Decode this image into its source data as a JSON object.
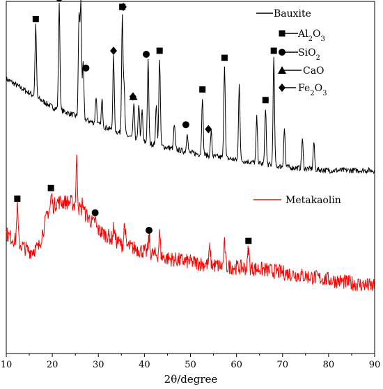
{
  "chart_data": {
    "type": "line",
    "xlabel": "2θ/degree",
    "ylabel": "",
    "xlim": [
      10,
      90
    ],
    "x_ticks": [
      "10",
      "20",
      "30",
      "40",
      "50",
      "60",
      "70",
      "80",
      "90"
    ],
    "grid": false,
    "legend_placement": "top-right",
    "series": [
      {
        "name": "Bauxite",
        "color": "#000000",
        "baseline": [
          [
            10,
            0.78
          ],
          [
            20,
            0.7
          ],
          [
            30,
            0.65
          ],
          [
            40,
            0.6
          ],
          [
            50,
            0.57
          ],
          [
            60,
            0.55
          ],
          [
            70,
            0.53
          ],
          [
            80,
            0.52
          ],
          [
            90,
            0.52
          ]
        ],
        "peaks": [
          [
            16.4,
            0.93
          ],
          [
            21.5,
            0.99
          ],
          [
            25.8,
            0.96
          ],
          [
            26.2,
            0.99
          ],
          [
            26.7,
            0.82
          ],
          [
            29.5,
            0.73
          ],
          [
            30.8,
            0.72
          ],
          [
            33.3,
            0.84
          ],
          [
            35.2,
            0.96
          ],
          [
            35.6,
            0.75
          ],
          [
            37.7,
            0.71
          ],
          [
            38.8,
            0.71
          ],
          [
            39.5,
            0.69
          ],
          [
            40.8,
            0.83
          ],
          [
            42.6,
            0.71
          ],
          [
            43.3,
            0.84
          ],
          [
            46.5,
            0.65
          ],
          [
            49.3,
            0.63
          ],
          [
            52.6,
            0.73
          ],
          [
            54.5,
            0.63
          ],
          [
            57.4,
            0.82
          ],
          [
            60.6,
            0.77
          ],
          [
            64.4,
            0.67
          ],
          [
            66.3,
            0.7
          ],
          [
            68.1,
            0.84
          ],
          [
            70.4,
            0.64
          ],
          [
            74.3,
            0.61
          ],
          [
            76.8,
            0.6
          ],
          [
            88.8,
            0.52
          ]
        ]
      },
      {
        "name": "Metakaolin",
        "color": "#ff0000",
        "baseline": [
          [
            10,
            0.34
          ],
          [
            13,
            0.31
          ],
          [
            15,
            0.29
          ],
          [
            17,
            0.3
          ],
          [
            19,
            0.4
          ],
          [
            21,
            0.43
          ],
          [
            24,
            0.43
          ],
          [
            27,
            0.4
          ],
          [
            30,
            0.35
          ],
          [
            35,
            0.31
          ],
          [
            40,
            0.29
          ],
          [
            45,
            0.27
          ],
          [
            50,
            0.26
          ],
          [
            55,
            0.25
          ],
          [
            60,
            0.245
          ],
          [
            65,
            0.24
          ],
          [
            70,
            0.23
          ],
          [
            75,
            0.22
          ],
          [
            80,
            0.21
          ],
          [
            85,
            0.2
          ],
          [
            90,
            0.19
          ]
        ],
        "peaks": [
          [
            12.4,
            0.42
          ],
          [
            19.8,
            0.45
          ],
          [
            25.3,
            0.55
          ],
          [
            26.6,
            0.43
          ],
          [
            29.3,
            0.38
          ],
          [
            33.4,
            0.36
          ],
          [
            35.7,
            0.37
          ],
          [
            41.0,
            0.33
          ],
          [
            43.3,
            0.34
          ],
          [
            54.2,
            0.3
          ],
          [
            57.4,
            0.31
          ],
          [
            62.6,
            0.3
          ]
        ]
      }
    ],
    "phase_markers": [
      {
        "series": "Bauxite",
        "phase": "Al2O3",
        "shape": "square",
        "x": [
          16.4,
          35.2,
          43.3,
          52.6,
          57.4,
          66.3,
          68.1
        ]
      },
      {
        "series": "Bauxite",
        "phase": "SiO2",
        "shape": "circle",
        "x": [
          21.5,
          26.2,
          27.3,
          40.4,
          49.0
        ]
      },
      {
        "series": "Bauxite",
        "phase": "CaO",
        "shape": "triangle",
        "x": [
          37.6
        ]
      },
      {
        "series": "Bauxite",
        "phase": "Fe2O3",
        "shape": "diamond",
        "x": [
          33.3,
          35.4,
          37.5,
          53.9
        ]
      },
      {
        "series": "Metakaolin",
        "phase": "Al2O3",
        "shape": "square",
        "x": [
          12.4,
          19.7,
          62.6
        ]
      },
      {
        "series": "Metakaolin",
        "phase": "SiO2",
        "shape": "circle",
        "x": [
          29.3,
          41.0
        ]
      }
    ],
    "legend": [
      {
        "label": "Bauxite",
        "shape": "line",
        "color": "#000000"
      },
      {
        "label": "Al",
        "sub": "2",
        "label_rest": "O",
        "sub2": "3",
        "shape": "square",
        "color": "#000000"
      },
      {
        "label": "SiO",
        "sub": "2",
        "label_rest": "",
        "sub2": "",
        "shape": "circle",
        "color": "#000000"
      },
      {
        "label": "CaO",
        "sub": "",
        "label_rest": "",
        "sub2": "",
        "shape": "triangle",
        "color": "#000000"
      },
      {
        "label": "Fe",
        "sub": "2",
        "label_rest": "O",
        "sub2": "3",
        "shape": "diamond",
        "color": "#000000"
      },
      {
        "label": "Metakaolin",
        "shape": "line",
        "color": "#ff0000"
      }
    ]
  }
}
